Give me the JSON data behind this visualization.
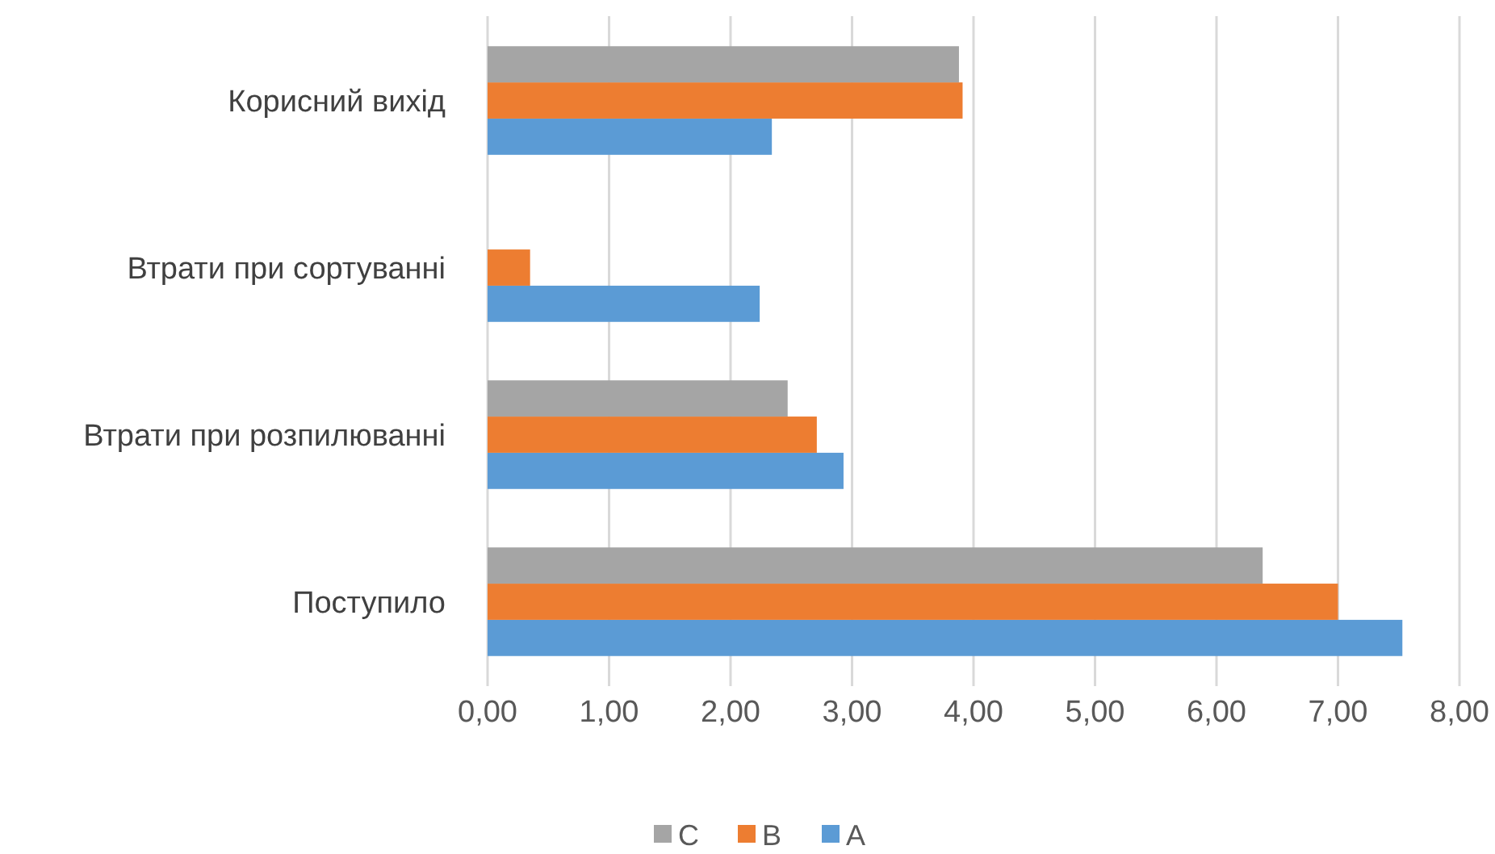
{
  "chart_data": {
    "type": "bar",
    "orientation": "horizontal",
    "categories": [
      "Корисний вихід",
      "Втрати при сортуванні",
      "Втрати при розпилюванні",
      "Поступило"
    ],
    "series": [
      {
        "name": "A",
        "color": "#5b9bd5",
        "values": [
          2.34,
          2.24,
          2.93,
          7.53
        ]
      },
      {
        "name": "B",
        "color": "#ed7d31",
        "values": [
          3.91,
          0.35,
          2.71,
          7.0
        ]
      },
      {
        "name": "C",
        "color": "#a5a5a5",
        "values": [
          3.88,
          null,
          2.47,
          6.38
        ]
      }
    ],
    "xlim": [
      0,
      8
    ],
    "xticks": [
      {
        "value": 0,
        "label": "0,00"
      },
      {
        "value": 1,
        "label": "1,00"
      },
      {
        "value": 2,
        "label": "2,00"
      },
      {
        "value": 3,
        "label": "3,00"
      },
      {
        "value": 4,
        "label": "4,00"
      },
      {
        "value": 5,
        "label": "5,00"
      },
      {
        "value": 6,
        "label": "6,00"
      },
      {
        "value": 7,
        "label": "7,00"
      },
      {
        "value": 8,
        "label": "8,00"
      }
    ],
    "grid": "x",
    "legend": "bottom"
  }
}
